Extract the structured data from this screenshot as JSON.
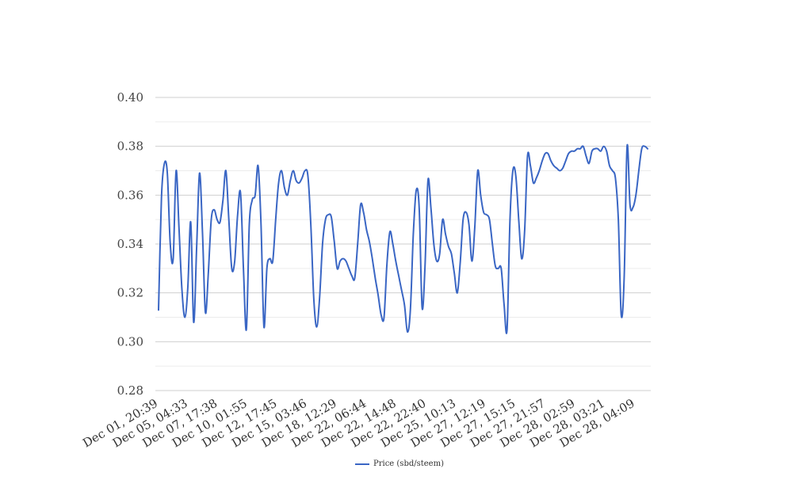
{
  "chart_data": {
    "type": "line",
    "title": "",
    "xlabel": "",
    "ylabel": "",
    "ylim": [
      0.28,
      0.4
    ],
    "y_ticks": [
      "0.40",
      "0.38",
      "0.36",
      "0.34",
      "0.32",
      "0.30",
      "0.28"
    ],
    "grid": "horizontal major and minor lines",
    "legend_position": "bottom-center",
    "line_color": "#3a66c4",
    "x_tick_labels": [
      "Dec 01, 20:39",
      "Dec 05, 04:33",
      "Dec 07, 17:38",
      "Dec 10, 01:55",
      "Dec 12, 17:45",
      "Dec 15, 03:46",
      "Dec 18, 12:29",
      "Dec 22, 06:44",
      "Dec 22, 14:48",
      "Dec 22, 22:40",
      "Dec 25, 10:13",
      "Dec 27, 12:19",
      "Dec 27, 15:15",
      "Dec 27, 21:57",
      "Dec 28, 02:59",
      "Dec 28, 03:21",
      "Dec 28, 04:09"
    ],
    "series": [
      {
        "name": "Price (sbd/steem)",
        "values": [
          0.313,
          0.359,
          0.373,
          0.369,
          0.34,
          0.334,
          0.37,
          0.346,
          0.321,
          0.31,
          0.322,
          0.349,
          0.308,
          0.338,
          0.369,
          0.345,
          0.312,
          0.328,
          0.35,
          0.354,
          0.35,
          0.349,
          0.358,
          0.37,
          0.35,
          0.33,
          0.333,
          0.352,
          0.361,
          0.33,
          0.305,
          0.348,
          0.358,
          0.36,
          0.372,
          0.348,
          0.306,
          0.33,
          0.334,
          0.333,
          0.35,
          0.365,
          0.37,
          0.363,
          0.36,
          0.366,
          0.37,
          0.366,
          0.365,
          0.367,
          0.37,
          0.368,
          0.348,
          0.318,
          0.306,
          0.318,
          0.34,
          0.35,
          0.352,
          0.351,
          0.341,
          0.33,
          0.333,
          0.334,
          0.333,
          0.33,
          0.327,
          0.326,
          0.34,
          0.356,
          0.353,
          0.346,
          0.341,
          0.334,
          0.326,
          0.319,
          0.311,
          0.31,
          0.332,
          0.345,
          0.34,
          0.333,
          0.327,
          0.321,
          0.315,
          0.304,
          0.313,
          0.344,
          0.362,
          0.355,
          0.314,
          0.331,
          0.366,
          0.355,
          0.34,
          0.333,
          0.336,
          0.35,
          0.344,
          0.339,
          0.336,
          0.328,
          0.32,
          0.332,
          0.35,
          0.353,
          0.348,
          0.333,
          0.347,
          0.37,
          0.36,
          0.353,
          0.352,
          0.35,
          0.34,
          0.331,
          0.33,
          0.33,
          0.315,
          0.305,
          0.35,
          0.37,
          0.368,
          0.35,
          0.334,
          0.345,
          0.376,
          0.372,
          0.365,
          0.367,
          0.37,
          0.374,
          0.377,
          0.377,
          0.374,
          0.372,
          0.371,
          0.37,
          0.371,
          0.374,
          0.377,
          0.378,
          0.378,
          0.379,
          0.379,
          0.38,
          0.376,
          0.373,
          0.378,
          0.379,
          0.379,
          0.378,
          0.38,
          0.378,
          0.372,
          0.37,
          0.367,
          0.35,
          0.311,
          0.326,
          0.38,
          0.356,
          0.355,
          0.36,
          0.37,
          0.379,
          0.38,
          0.379
        ]
      }
    ]
  }
}
